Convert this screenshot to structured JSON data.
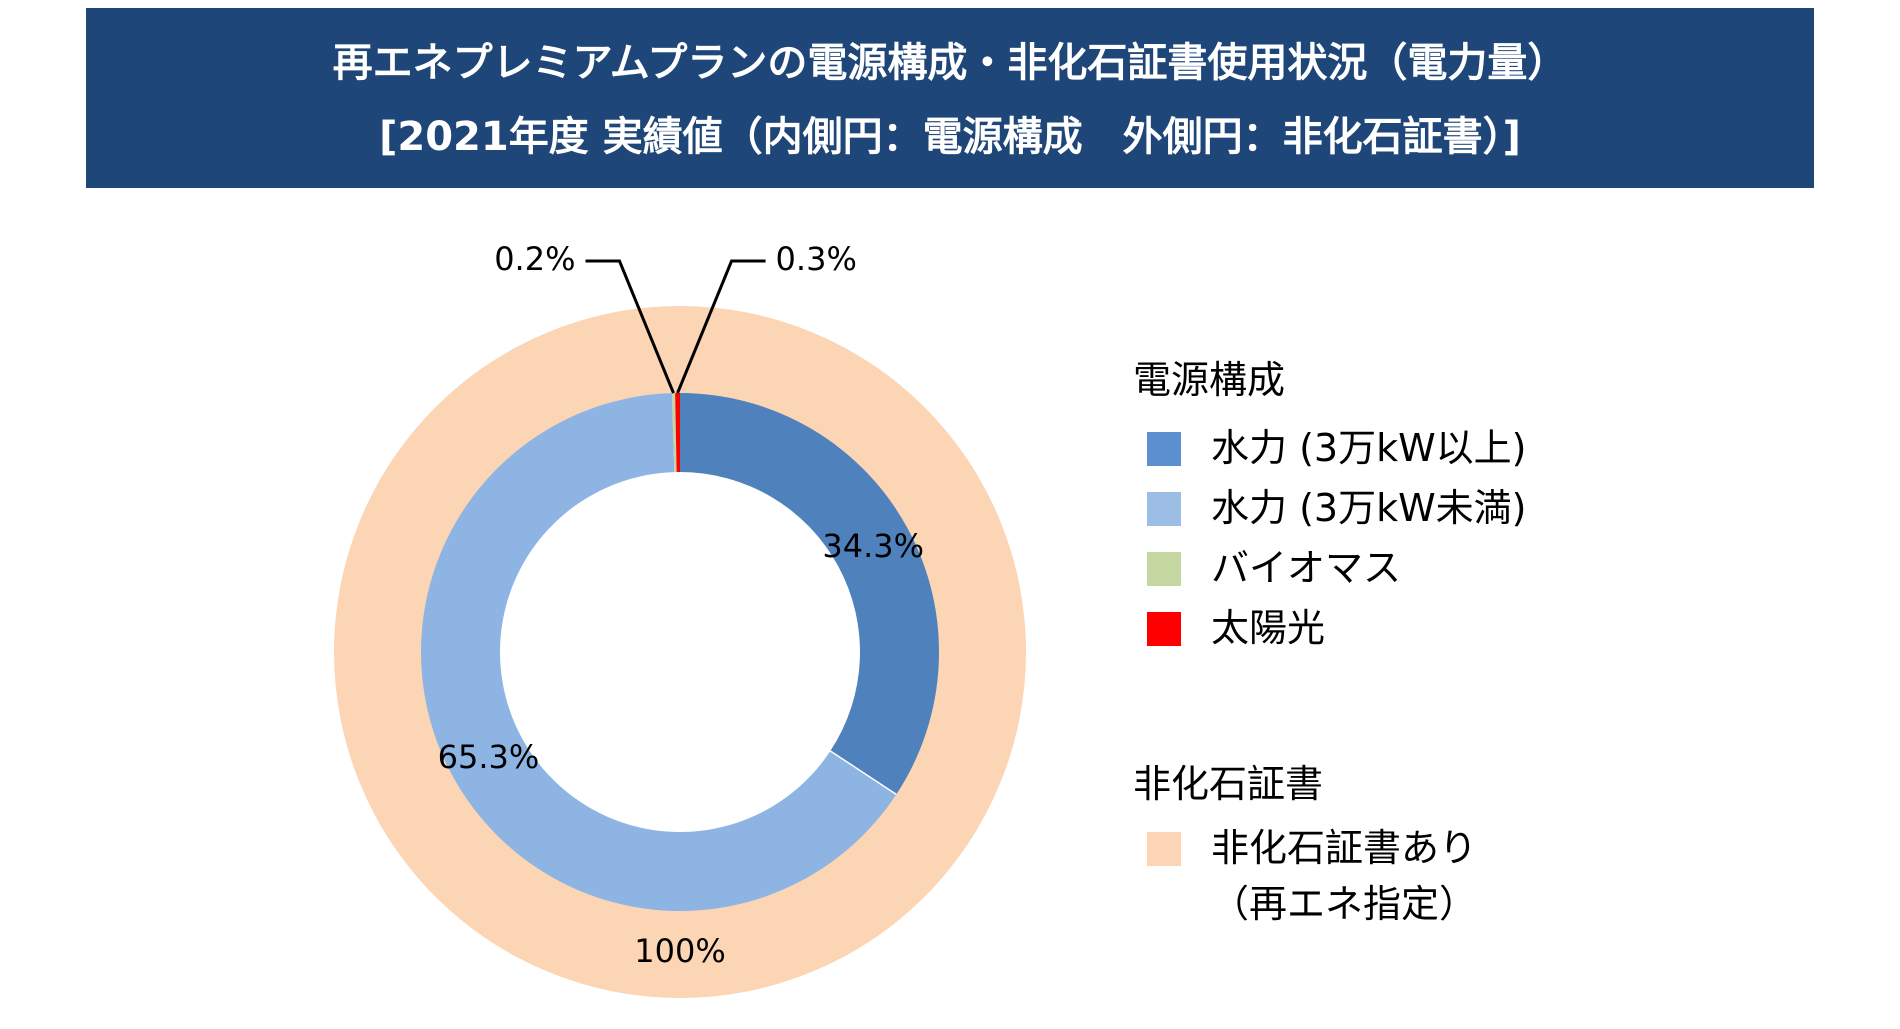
{
  "header": {
    "title": "再エネプレミアムプランの電源構成・非化石証書使用状況（電力量）",
    "subtitle": "[2021年度 実績値（内側円：電源構成　外側円：非化石証書）]"
  },
  "legend": {
    "group1_title": "電源構成",
    "group1_items": [
      {
        "label": "水力 (3万kW以上)",
        "color": "#5b8fd0"
      },
      {
        "label": "水力 (3万kW未満)",
        "color": "#9cbde4"
      },
      {
        "label": "バイオマス",
        "color": "#c4d7a0"
      },
      {
        "label": "太陽光",
        "color": "#ff0000"
      }
    ],
    "group2_title": "非化石証書",
    "group2_items": [
      {
        "label": "非化石証書あり",
        "label2": "（再エネ指定）",
        "color": "#fcd5b5"
      }
    ]
  },
  "chart_data": {
    "type": "pie",
    "style": "nested-donut",
    "inner_ring": {
      "name": "電源構成",
      "labels": [
        "水力 (3万kW以上)",
        "水力 (3万kW未満)",
        "バイオマス",
        "太陽光"
      ],
      "values": [
        34.3,
        65.3,
        0.2,
        0.3
      ],
      "value_labels": [
        "34.3%",
        "65.3%",
        "0.2%",
        "0.3%"
      ],
      "colors": [
        "#4f81bd",
        "#8eb4e3",
        "#c4d7a0",
        "#ff0000"
      ]
    },
    "outer_ring": {
      "name": "非化石証書",
      "labels": [
        "非化石証書あり（再エネ指定）"
      ],
      "values": [
        100
      ],
      "value_labels": [
        "100%"
      ],
      "colors": [
        "#fcd5b5"
      ]
    },
    "legend_position": "right"
  }
}
